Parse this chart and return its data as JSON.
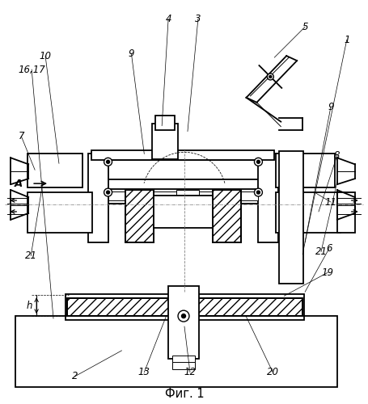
{
  "background_color": "#ffffff",
  "fig_label": "Фиг. 1",
  "lw_main": 1.3,
  "lw_thin": 0.7,
  "lw_dash": 0.5
}
